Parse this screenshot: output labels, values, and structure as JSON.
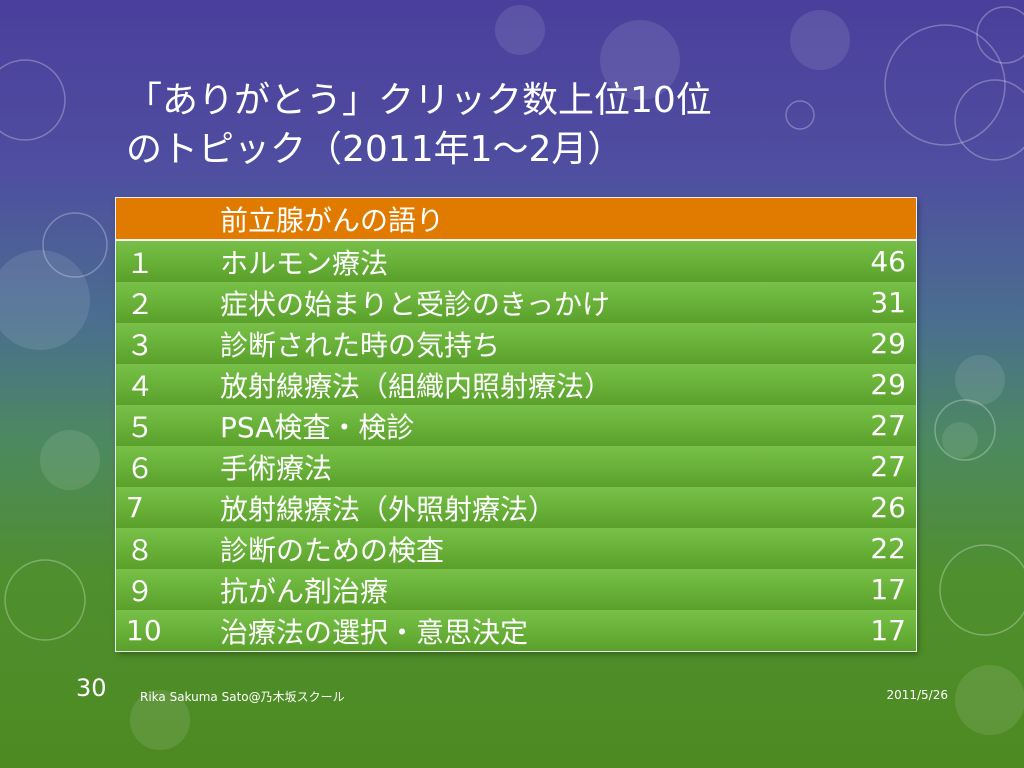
{
  "slide": {
    "title_line1": "「ありがとう」クリック数上位10位",
    "title_line2": "のトピック（2011年1〜2月）"
  },
  "table": {
    "header": "前立腺がんの語り",
    "rows": [
      {
        "rank": "１",
        "topic": "ホルモン療法",
        "count": "46"
      },
      {
        "rank": "２",
        "topic": "症状の始まりと受診のきっかけ",
        "count": "31"
      },
      {
        "rank": "３",
        "topic": "診断された時の気持ち",
        "count": "29"
      },
      {
        "rank": "４",
        "topic": "放射線療法（組織内照射療法）",
        "count": "29"
      },
      {
        "rank": "５",
        "topic": "PSA検査・検診",
        "count": "27"
      },
      {
        "rank": "６",
        "topic": "手術療法",
        "count": "27"
      },
      {
        "rank": "7",
        "topic": "放射線療法（外照射療法）",
        "count": "26"
      },
      {
        "rank": "８",
        "topic": "診断のための検査",
        "count": "22"
      },
      {
        "rank": "９",
        "topic": "抗がん剤治療",
        "count": "17"
      },
      {
        "rank": "10",
        "topic": "治療法の選択・意思決定",
        "count": "17"
      }
    ]
  },
  "footer": {
    "page_number": "30",
    "author": "Rika Sakuma Sato@乃木坂スクール",
    "date": "2011/5/26"
  },
  "colors": {
    "header_bg": "#e07b00",
    "row_bg": "#6cb53c",
    "text": "#ffffff"
  }
}
